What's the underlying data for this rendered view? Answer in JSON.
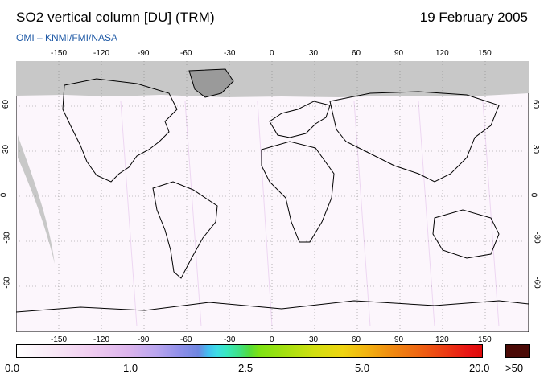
{
  "header": {
    "title": "SO2 vertical column [DU] (TRM)",
    "date": "19 February 2005",
    "credit": "OMI  –  KNMI/FMI/NASA"
  },
  "map": {
    "projection": "equirectangular",
    "lon_ticks": [
      "-150",
      "-120",
      "-90",
      "-60",
      "-30",
      "0",
      "30",
      "60",
      "90",
      "120",
      "150"
    ],
    "lat_ticks": [
      "60",
      "30",
      "0",
      "-30",
      "-60"
    ],
    "grid": true,
    "colors": {
      "land_outline": "#000000",
      "no_data": "#c8c8c8",
      "background": "#fcf6fc",
      "grid": "#888888"
    }
  },
  "colorbar": {
    "labels": [
      "0.0",
      "1.0",
      "2.5",
      "5.0",
      "20.0"
    ],
    "overflow_label": ">50",
    "overflow_color": "#4b0a06"
  }
}
